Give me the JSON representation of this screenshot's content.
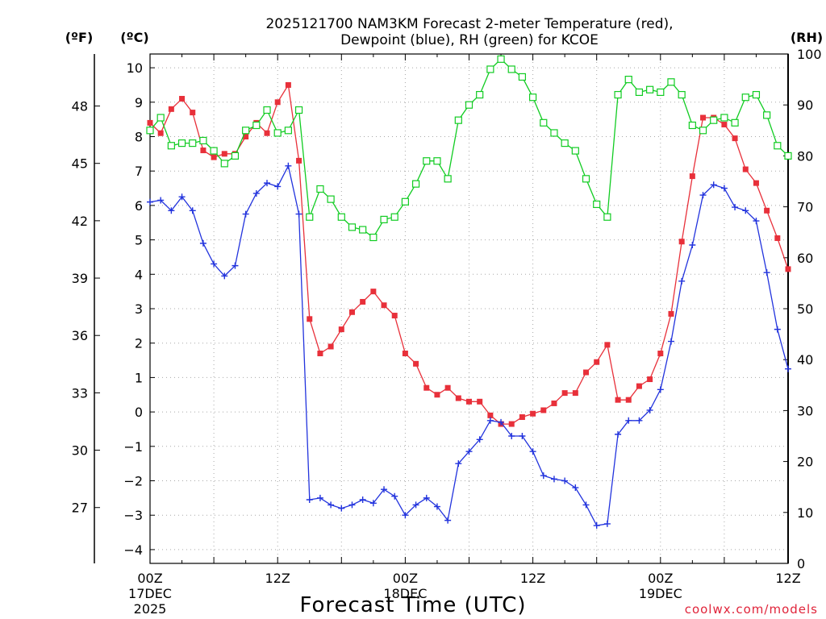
{
  "chart_data": {
    "type": "line",
    "title": "2025121700 NAM3KM Forecast 2-meter Temperature (red),",
    "subtitle": "Dewpoint (blue), RH (green) for KCOE",
    "xlabel": "Forecast Time (UTC)",
    "credit": "coolwx.com/models",
    "unit_labels": {
      "f": "(ºF)",
      "c": "(ºC)",
      "rh": "(RH)"
    },
    "x_range_hours": [
      0,
      60
    ],
    "x_ticks": [
      {
        "hour": 0,
        "line1": "00Z",
        "line2": "17DEC",
        "line3": "2025"
      },
      {
        "hour": 12,
        "line1": "12Z",
        "line2": "",
        "line3": ""
      },
      {
        "hour": 24,
        "line1": "00Z",
        "line2": "18DEC",
        "line3": ""
      },
      {
        "hour": 36,
        "line1": "12Z",
        "line2": "",
        "line3": ""
      },
      {
        "hour": 48,
        "line1": "00Z",
        "line2": "19DEC",
        "line3": ""
      },
      {
        "hour": 60,
        "line1": "12Z",
        "line2": "",
        "line3": ""
      }
    ],
    "y_left_c": {
      "min": -4.4,
      "max": 10.4,
      "ticks": [
        -4,
        -3,
        -2,
        -1,
        0,
        1,
        2,
        3,
        4,
        5,
        6,
        7,
        8,
        9,
        10
      ]
    },
    "y_left_f": {
      "ticks": [
        27,
        30,
        33,
        36,
        39,
        42,
        45,
        48
      ]
    },
    "y_right_rh": {
      "min": 0,
      "max": 100,
      "ticks": [
        0,
        10,
        20,
        30,
        40,
        50,
        60,
        70,
        80,
        90,
        100
      ]
    },
    "x": [
      0,
      1,
      2,
      3,
      4,
      5,
      6,
      7,
      8,
      9,
      10,
      11,
      12,
      13,
      14,
      15,
      16,
      17,
      18,
      19,
      20,
      21,
      22,
      23,
      24,
      25,
      26,
      27,
      28,
      29,
      30,
      31,
      32,
      33,
      34,
      35,
      36,
      37,
      38,
      39,
      40,
      41,
      42,
      43,
      44,
      45,
      46,
      47,
      48,
      49,
      50,
      51,
      52,
      53,
      54,
      55,
      56,
      57,
      58,
      59,
      60
    ],
    "series": [
      {
        "name": "Temperature",
        "unit": "C",
        "color": "#e8303a",
        "marker": "filled-square",
        "values": [
          8.4,
          8.1,
          8.8,
          9.1,
          8.7,
          7.6,
          7.4,
          7.5,
          7.5,
          8.0,
          8.4,
          8.1,
          9.0,
          9.5,
          7.3,
          2.7,
          1.7,
          1.9,
          2.4,
          2.9,
          3.2,
          3.5,
          3.1,
          2.8,
          1.7,
          1.4,
          0.7,
          0.5,
          0.7,
          0.4,
          0.3,
          0.3,
          -0.1,
          -0.35,
          -0.35,
          -0.15,
          -0.05,
          0.05,
          0.25,
          0.55,
          0.55,
          1.15,
          1.45,
          1.95,
          0.35,
          0.35,
          0.75,
          0.95,
          1.7,
          2.85,
          4.95,
          6.85,
          8.55,
          8.55,
          8.35,
          7.95,
          7.05,
          6.65,
          5.85,
          5.05,
          4.15
        ]
      },
      {
        "name": "Dewpoint",
        "unit": "C",
        "color": "#2233dd",
        "marker": "plus",
        "values": [
          6.1,
          6.15,
          5.85,
          6.25,
          5.85,
          4.9,
          4.3,
          3.95,
          4.25,
          5.75,
          6.35,
          6.65,
          6.55,
          7.15,
          5.75,
          -2.55,
          -2.5,
          -2.7,
          -2.8,
          -2.7,
          -2.55,
          -2.65,
          -2.25,
          -2.45,
          -3.0,
          -2.7,
          -2.5,
          -2.75,
          -3.15,
          -1.5,
          -1.15,
          -0.8,
          -0.25,
          -0.3,
          -0.7,
          -0.7,
          -1.15,
          -1.85,
          -1.95,
          -2.0,
          -2.2,
          -2.7,
          -3.3,
          -3.25,
          -0.65,
          -0.25,
          -0.25,
          0.05,
          0.65,
          2.05,
          3.8,
          4.85,
          6.3,
          6.6,
          6.5,
          5.95,
          5.85,
          5.55,
          4.05,
          2.4,
          1.25
        ]
      },
      {
        "name": "RH",
        "unit": "%",
        "color": "#11cc22",
        "marker": "open-square",
        "values": [
          85,
          87.5,
          82,
          82.5,
          82.5,
          83,
          81,
          78.5,
          80,
          85,
          86,
          89,
          84.5,
          85,
          89,
          68,
          73.5,
          71.5,
          68,
          66,
          65.5,
          64,
          67.5,
          68,
          71,
          74.5,
          79,
          79,
          75.5,
          87,
          90,
          92,
          97,
          99,
          97,
          95.5,
          91.5,
          86.5,
          84.5,
          82.5,
          81,
          75.5,
          70.5,
          68,
          92,
          95,
          92.5,
          93,
          92.5,
          94.5,
          92,
          86,
          85,
          87,
          87.5,
          86.5,
          91.5,
          92,
          88,
          82,
          80
        ]
      }
    ]
  }
}
